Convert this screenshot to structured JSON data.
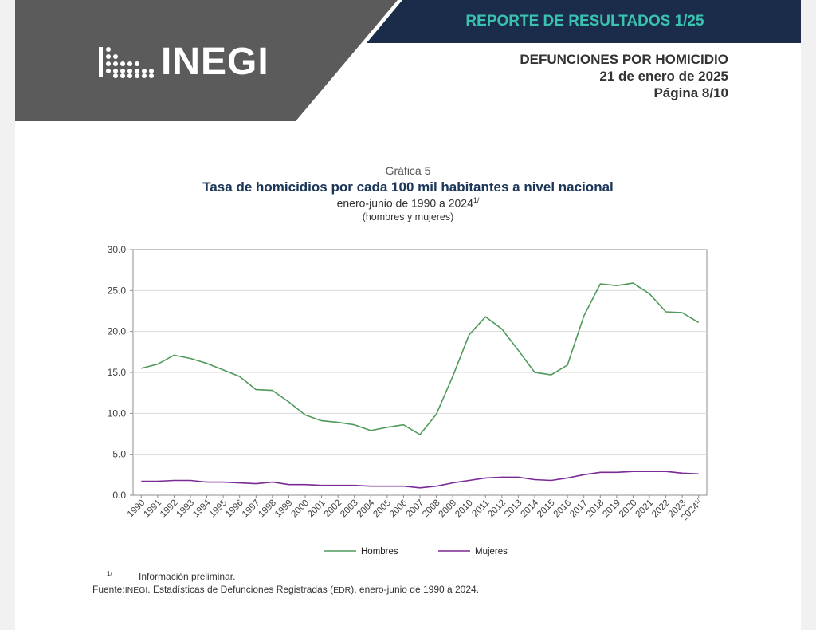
{
  "header": {
    "logo_text": "INEGI",
    "report_title": "REPORTE DE RESULTADOS 1/25",
    "doc_title": "DEFUNCIONES POR HOMICIDIO",
    "doc_date": "21 de enero de 2025",
    "doc_page": "Página 8/10",
    "colors": {
      "dark_band": "#5b5b5b",
      "navy_band": "#1b2c4b",
      "teal_text": "#39c2b0"
    }
  },
  "chart_data": {
    "type": "line",
    "label": "Gráfica 5",
    "title": "Tasa de homicidios por cada 100 mil habitantes a nivel nacional",
    "subtitle": "enero-junio de 1990 a 2024",
    "subtitle_note": "1/",
    "subtitle2": "(hombres y mujeres)",
    "xlabel": "",
    "ylabel": "",
    "ylim": [
      0,
      30
    ],
    "yticks": [
      "0.0",
      "5.0",
      "10.0",
      "15.0",
      "20.0",
      "25.0",
      "30.0"
    ],
    "grid": true,
    "legend_position": "bottom",
    "x": [
      "1990",
      "1991",
      "1992",
      "1993",
      "1994",
      "1995",
      "1996",
      "1997",
      "1998",
      "1999",
      "2000",
      "2001",
      "2002",
      "2003",
      "2004",
      "2005",
      "2006",
      "2007",
      "2008",
      "2009",
      "2010",
      "2011",
      "2012",
      "2013",
      "2014",
      "2015",
      "2016",
      "2017",
      "2018",
      "2019",
      "2020",
      "2021",
      "2022",
      "2023",
      "2024"
    ],
    "last_tick_note": "1/",
    "series": [
      {
        "name": "Hombres",
        "color": "#4f9a5b",
        "values": [
          15.5,
          16.0,
          17.1,
          16.7,
          16.1,
          15.3,
          14.5,
          12.9,
          12.8,
          11.4,
          9.8,
          9.1,
          8.9,
          8.6,
          7.9,
          8.3,
          8.6,
          7.4,
          9.9,
          14.5,
          19.6,
          21.8,
          20.3,
          17.7,
          15.0,
          14.7,
          15.9,
          21.9,
          25.8,
          25.6,
          25.9,
          24.6,
          22.4,
          22.3,
          21.1
        ]
      },
      {
        "name": "Mujeres",
        "color": "#7b2a96",
        "values": [
          1.7,
          1.7,
          1.8,
          1.8,
          1.6,
          1.6,
          1.5,
          1.4,
          1.6,
          1.3,
          1.3,
          1.2,
          1.2,
          1.2,
          1.1,
          1.1,
          1.1,
          0.9,
          1.1,
          1.5,
          1.8,
          2.1,
          2.2,
          2.2,
          1.9,
          1.8,
          2.1,
          2.5,
          2.8,
          2.8,
          2.9,
          2.9,
          2.9,
          2.7,
          2.6
        ]
      }
    ]
  },
  "notes": {
    "footnote_mark": "1/",
    "footnote_text": "Información preliminar.",
    "source_label": "Fuente:",
    "source_org": "INEGI",
    "source_text": ". Estadísticas de Defunciones Registradas (",
    "source_abbr": "EDR",
    "source_text2": "), enero-junio de 1990 a 2024."
  }
}
